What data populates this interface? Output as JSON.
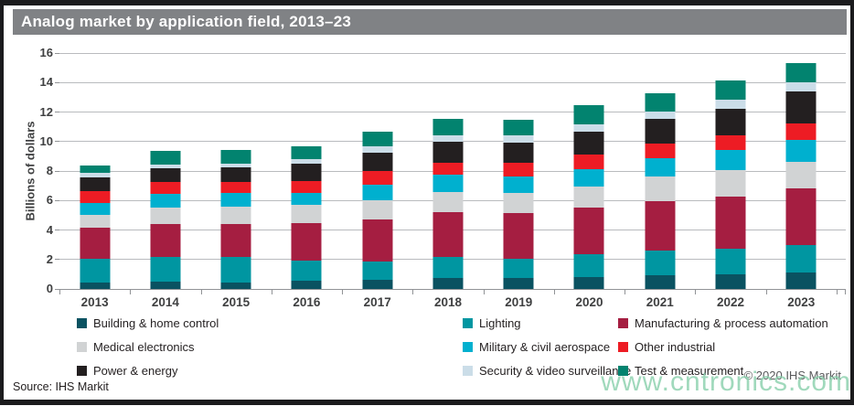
{
  "title": "Analog market by application field, 2013–23",
  "source": "Source: IHS Markit",
  "copyright": "© 2020 IHS Markit",
  "watermark": "www.cntronics.com",
  "colors": {
    "title_bar_bg": "#808285",
    "title_text": "#ffffff",
    "frame": "#1b1b1d",
    "gridline": "#b9bbbe",
    "axis_line": "#919396",
    "axis_text": "#3f4041",
    "legend_text": "#231f20",
    "copyright_text": "#58595b",
    "watermark_color": "#88cfab"
  },
  "chart_data": {
    "type": "bar",
    "stacked": true,
    "title": "Analog market by application field, 2013–23",
    "xlabel": "",
    "ylabel": "Billions of dollars",
    "ylim": [
      0,
      16
    ],
    "ytick_step": 2,
    "grid": true,
    "legend_position": "bottom",
    "categories": [
      "2013",
      "2014",
      "2015",
      "2016",
      "2017",
      "2018",
      "2019",
      "2020",
      "2021",
      "2022",
      "2023"
    ],
    "series": [
      {
        "name": "Building & home control",
        "color": "#0a5261",
        "values": [
          0.45,
          0.5,
          0.45,
          0.55,
          0.65,
          0.75,
          0.75,
          0.8,
          0.95,
          1.0,
          1.1
        ]
      },
      {
        "name": "Lighting",
        "color": "#0096a1",
        "values": [
          1.6,
          1.7,
          1.7,
          1.4,
          1.2,
          1.4,
          1.3,
          1.55,
          1.65,
          1.7,
          1.85
        ]
      },
      {
        "name": "Manufacturing & process automation",
        "color": "#a51e41",
        "values": [
          2.1,
          2.2,
          2.25,
          2.5,
          2.85,
          3.05,
          3.1,
          3.2,
          3.35,
          3.55,
          3.9
        ]
      },
      {
        "name": "Medical electronics",
        "color": "#d1d3d4",
        "values": [
          0.85,
          1.15,
          1.2,
          1.25,
          1.3,
          1.4,
          1.35,
          1.4,
          1.65,
          1.8,
          1.8
        ]
      },
      {
        "name": "Military & civil aerospace",
        "color": "#00b0cf",
        "values": [
          0.85,
          0.9,
          0.9,
          0.8,
          1.05,
          1.15,
          1.15,
          1.2,
          1.25,
          1.35,
          1.45
        ]
      },
      {
        "name": "Other industrial",
        "color": "#ed1c24",
        "values": [
          0.8,
          0.8,
          0.75,
          0.8,
          0.95,
          0.8,
          0.9,
          0.95,
          1.0,
          1.05,
          1.15
        ]
      },
      {
        "name": "Power & energy",
        "color": "#231f20",
        "values": [
          0.9,
          0.95,
          1.0,
          1.2,
          1.25,
          1.45,
          1.35,
          1.55,
          1.7,
          1.8,
          2.15
        ]
      },
      {
        "name": "Security & video surveillance",
        "color": "#cbdde8",
        "values": [
          0.3,
          0.25,
          0.25,
          0.3,
          0.45,
          0.45,
          0.55,
          0.5,
          0.5,
          0.6,
          0.6
        ]
      },
      {
        "name": "Test & measurement",
        "color": "#02836f",
        "values": [
          0.5,
          0.9,
          0.95,
          0.9,
          0.95,
          1.1,
          1.05,
          1.3,
          1.2,
          1.3,
          1.3
        ]
      }
    ],
    "totals": [
      8.35,
      9.35,
      9.45,
      9.7,
      10.65,
      11.55,
      11.5,
      12.45,
      13.25,
      14.15,
      15.3
    ]
  }
}
